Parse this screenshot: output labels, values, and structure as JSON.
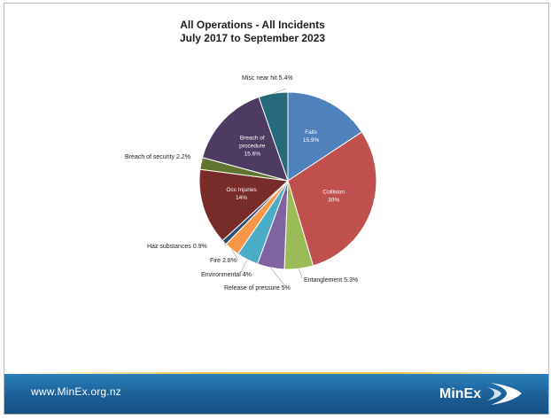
{
  "slide": {
    "title_line1": "All Operations - All Incidents",
    "title_line2": "July 2017 to September 2023"
  },
  "chart_data": {
    "type": "pie",
    "title": "All Operations - All Incidents",
    "subtitle": "July 2017 to September 2023",
    "slices": [
      {
        "name": "Falls",
        "label": "Falls",
        "value_label": "15.9%",
        "value": 15.9,
        "color": "#4f81bd",
        "label_pos": "inside"
      },
      {
        "name": "Collision",
        "label": "Collision",
        "value_label": "30%",
        "value": 30,
        "color": "#c0504d",
        "label_pos": "inside"
      },
      {
        "name": "Entanglement",
        "label": "Entanglement 5.3%",
        "value_label": "",
        "value": 5.3,
        "color": "#9bbb59",
        "label_pos": "outside"
      },
      {
        "name": "Release of pressure",
        "label": "Release of pressure 5%",
        "value_label": "",
        "value": 5,
        "color": "#8064a2",
        "label_pos": "outside"
      },
      {
        "name": "Environmental",
        "label": "Environmental 4%",
        "value_label": "",
        "value": 4,
        "color": "#4bacc6",
        "label_pos": "outside"
      },
      {
        "name": "Fire",
        "label": "Fire 2.8%",
        "value_label": "",
        "value": 2.8,
        "color": "#f79646",
        "label_pos": "outside"
      },
      {
        "name": "Haz substances",
        "label": "Haz substances 0.9%",
        "value_label": "",
        "value": 0.9,
        "color": "#2c4d75",
        "label_pos": "outside"
      },
      {
        "name": "Occ Injuries",
        "label": "Occ Injuries",
        "value_label": "14%",
        "value": 14,
        "color": "#772c2a",
        "label_pos": "inside"
      },
      {
        "name": "Breach of security",
        "label": "Breach of security 2.2%",
        "value_label": "",
        "value": 2.2,
        "color": "#5f7530",
        "label_pos": "outside"
      },
      {
        "name": "Breach of procedure",
        "label": "Breach of procedure",
        "value_label": "15.6%",
        "value": 15.6,
        "color": "#4d3b62",
        "label_pos": "inside"
      },
      {
        "name": "Misc near hit",
        "label": "Misc near hit 5.4%",
        "value_label": "",
        "value": 5.4,
        "color": "#276a7c",
        "label_pos": "outside"
      }
    ]
  },
  "footer": {
    "url": "www.MinEx.org.nz",
    "logo_text": "MinEx"
  }
}
